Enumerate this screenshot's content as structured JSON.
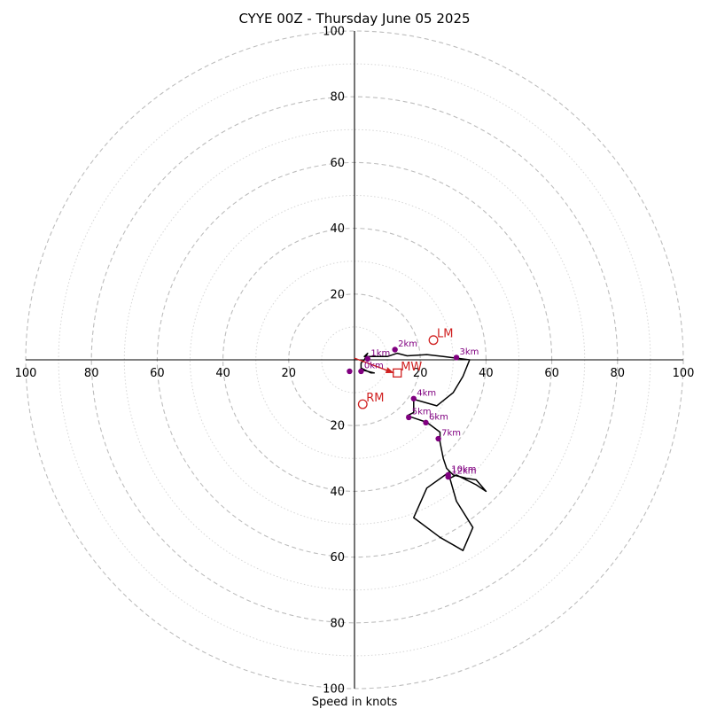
{
  "chart_data": {
    "type": "scatter",
    "title": "CYYE 00Z - Thursday June 05 2025",
    "xlabel": "Speed in knots",
    "ylabel": "",
    "xlim": [
      -100,
      100
    ],
    "ylim": [
      -100,
      100
    ],
    "major_ring_step": 20,
    "minor_ring_step": 10,
    "x_ticks": [
      "100",
      "80",
      "60",
      "40",
      "20",
      "20",
      "40",
      "60",
      "80",
      "100"
    ],
    "x_tick_values": [
      -100,
      -80,
      -60,
      -40,
      -20,
      20,
      40,
      60,
      80,
      100
    ],
    "y_ticks": [
      "100",
      "80",
      "60",
      "40",
      "20",
      "20",
      "40",
      "60",
      "80",
      "100"
    ],
    "y_tick_values": [
      100,
      80,
      60,
      40,
      20,
      -20,
      -40,
      -60,
      -80,
      -100
    ],
    "series": [
      {
        "kind": "hodograph",
        "color": "#000000",
        "points": [
          [
            2,
            -2.5
          ],
          [
            5,
            -4
          ],
          [
            6,
            -4
          ],
          [
            2,
            -3
          ],
          [
            2,
            -1
          ],
          [
            3,
            0
          ],
          [
            4,
            2
          ],
          [
            3,
            1
          ],
          [
            6,
            1
          ],
          [
            10,
            1
          ],
          [
            13,
            2
          ],
          [
            16,
            1.2
          ],
          [
            22,
            1.6
          ],
          [
            27,
            1
          ],
          [
            31,
            0.5
          ],
          [
            35,
            0
          ],
          [
            33,
            -5
          ],
          [
            30,
            -10
          ],
          [
            25,
            -14
          ],
          [
            18,
            -12
          ],
          [
            18,
            -16
          ],
          [
            16,
            -17
          ],
          [
            19,
            -18
          ],
          [
            22,
            -19
          ],
          [
            26,
            -22
          ],
          [
            26,
            -25
          ],
          [
            27,
            -30
          ],
          [
            28,
            -33
          ],
          [
            30,
            -35
          ],
          [
            34,
            -36
          ],
          [
            37,
            -36.5
          ],
          [
            40,
            -40
          ],
          [
            37,
            -38
          ],
          [
            31,
            -35
          ],
          [
            29,
            -36
          ],
          [
            31,
            -43
          ],
          [
            36,
            -51
          ],
          [
            33,
            -58
          ],
          [
            26,
            -54
          ],
          [
            18,
            -48
          ],
          [
            22,
            -39
          ],
          [
            29,
            -34
          ],
          [
            28,
            -35
          ]
        ]
      },
      {
        "kind": "altitude_markers",
        "color": "#800080",
        "points": [
          {
            "label": "0km",
            "x": 2,
            "y": -3.5
          },
          {
            "label": "1km",
            "x": 4,
            "y": 0.3
          },
          {
            "label": "2km",
            "x": 12.3,
            "y": 3.1
          },
          {
            "label": "3km",
            "x": 31,
            "y": 0.7
          },
          {
            "label": "4km",
            "x": 18,
            "y": -11.8
          },
          {
            "label": "5km",
            "x": 16.5,
            "y": -17.5
          },
          {
            "label": "6km",
            "x": 21.7,
            "y": -19.1
          },
          {
            "label": "7km",
            "x": 25.5,
            "y": -24
          },
          {
            "label": "10km",
            "x": 28.5,
            "y": -35
          },
          {
            "label": "12km",
            "x": 28.5,
            "y": -35.6
          }
        ],
        "extra_unlabeled": [
          {
            "x": -1.5,
            "y": -3.5
          }
        ]
      },
      {
        "kind": "storm_motion",
        "color": "#d02020",
        "markers": [
          {
            "label": "LM",
            "x": 24,
            "y": 6,
            "shape": "circle"
          },
          {
            "label": "MW",
            "x": 13,
            "y": -4,
            "shape": "square"
          },
          {
            "label": "RM",
            "x": 2.5,
            "y": -13.5,
            "shape": "circle"
          }
        ],
        "arrow": {
          "from": [
            0,
            0.5
          ],
          "to": [
            12,
            -4
          ]
        }
      }
    ]
  }
}
